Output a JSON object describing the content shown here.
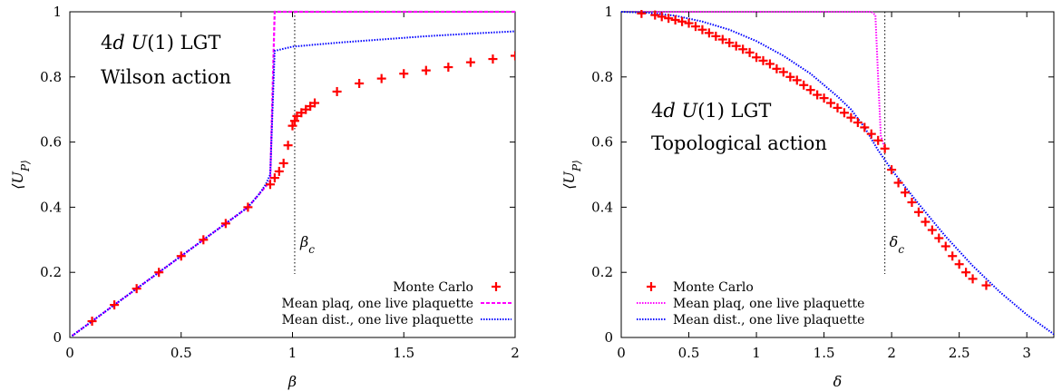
{
  "chart_data": [
    {
      "type": "scatter",
      "xlabel": "β",
      "ylabel": "⟨U_P⟩",
      "xlim": [
        0,
        2
      ],
      "ylim": [
        0,
        1
      ],
      "x_ticks": [
        "0",
        "0.5",
        "1",
        "1.5",
        "2"
      ],
      "y_ticks": [
        "0",
        "0.2",
        "0.4",
        "0.6",
        "0.8",
        "1"
      ],
      "annotation_line1": "4d U(1) LGT",
      "annotation_line2": "Wilson action",
      "critical_label": "β_c",
      "critical_x": 1.01,
      "legend_position": "bottom-right",
      "series": [
        {
          "name": "Monte Carlo",
          "color": "#ff0000",
          "marker": "plus",
          "x": [
            0.1,
            0.2,
            0.3,
            0.4,
            0.5,
            0.6,
            0.7,
            0.8,
            0.9,
            0.92,
            0.94,
            0.96,
            0.98,
            1.0,
            1.01,
            1.02,
            1.04,
            1.06,
            1.08,
            1.1,
            1.2,
            1.3,
            1.4,
            1.5,
            1.6,
            1.7,
            1.8,
            1.9,
            2.0
          ],
          "y": [
            0.05,
            0.1,
            0.15,
            0.2,
            0.25,
            0.3,
            0.35,
            0.4,
            0.47,
            0.49,
            0.51,
            0.535,
            0.59,
            0.65,
            0.665,
            0.68,
            0.69,
            0.7,
            0.71,
            0.72,
            0.755,
            0.78,
            0.795,
            0.81,
            0.82,
            0.83,
            0.845,
            0.855,
            0.865
          ]
        },
        {
          "name": "Mean plaq, one live plaquette",
          "color": "#ff00ff",
          "line": "dashed",
          "x": [
            0.01,
            0.1,
            0.2,
            0.3,
            0.4,
            0.5,
            0.6,
            0.7,
            0.8,
            0.85,
            0.9,
            0.91,
            0.92,
            0.93,
            2.0
          ],
          "y": [
            0.005,
            0.05,
            0.1,
            0.15,
            0.2,
            0.25,
            0.3,
            0.35,
            0.4,
            0.44,
            0.48,
            0.74,
            1.0,
            1.0,
            1.0
          ]
        },
        {
          "name": "Mean dist., one live plaquette",
          "color": "#0000ff",
          "line": "dotted",
          "x": [
            0.01,
            0.1,
            0.2,
            0.3,
            0.4,
            0.5,
            0.6,
            0.7,
            0.8,
            0.85,
            0.88,
            0.9,
            0.92,
            1.0,
            1.2,
            1.4,
            1.6,
            1.8,
            2.0
          ],
          "y": [
            0.005,
            0.05,
            0.1,
            0.15,
            0.2,
            0.25,
            0.3,
            0.35,
            0.4,
            0.44,
            0.47,
            0.5,
            0.88,
            0.893,
            0.905,
            0.915,
            0.925,
            0.933,
            0.94
          ]
        }
      ]
    },
    {
      "type": "scatter",
      "xlabel": "δ",
      "ylabel": "⟨U_P⟩",
      "xlim": [
        0,
        3.2
      ],
      "ylim": [
        0,
        1
      ],
      "x_ticks": [
        "0",
        "0.5",
        "1",
        "1.5",
        "2",
        "2.5",
        "3"
      ],
      "y_ticks": [
        "0",
        "0.2",
        "0.4",
        "0.6",
        "0.8",
        "1"
      ],
      "annotation_line1": "4d U(1) LGT",
      "annotation_line2": "Topological action",
      "critical_label": "δ_c",
      "critical_x": 1.95,
      "legend_position": "bottom-left",
      "series": [
        {
          "name": "Monte Carlo",
          "color": "#ff0000",
          "marker": "plus",
          "x": [
            0.15,
            0.25,
            0.3,
            0.35,
            0.4,
            0.45,
            0.5,
            0.55,
            0.6,
            0.65,
            0.7,
            0.75,
            0.8,
            0.85,
            0.9,
            0.95,
            1.0,
            1.05,
            1.1,
            1.15,
            1.2,
            1.25,
            1.3,
            1.35,
            1.4,
            1.45,
            1.5,
            1.55,
            1.6,
            1.65,
            1.7,
            1.75,
            1.8,
            1.85,
            1.9,
            1.95,
            2.0,
            2.05,
            2.1,
            2.15,
            2.2,
            2.25,
            2.3,
            2.35,
            2.4,
            2.45,
            2.5,
            2.55,
            2.6,
            2.7
          ],
          "y": [
            0.995,
            0.99,
            0.985,
            0.98,
            0.975,
            0.97,
            0.965,
            0.955,
            0.945,
            0.935,
            0.925,
            0.915,
            0.905,
            0.895,
            0.885,
            0.875,
            0.86,
            0.85,
            0.84,
            0.825,
            0.815,
            0.8,
            0.79,
            0.775,
            0.76,
            0.745,
            0.735,
            0.72,
            0.705,
            0.69,
            0.675,
            0.66,
            0.645,
            0.625,
            0.605,
            0.58,
            0.515,
            0.475,
            0.445,
            0.415,
            0.385,
            0.355,
            0.33,
            0.305,
            0.28,
            0.25,
            0.225,
            0.2,
            0.18,
            0.16
          ]
        },
        {
          "name": "Mean plaq, one live plaquette",
          "color": "#ff00ff",
          "line": "dotted",
          "x": [
            0.0,
            1.85,
            1.88,
            1.9,
            1.92,
            1.95
          ],
          "y": [
            1.0,
            1.0,
            0.99,
            0.8,
            0.62,
            0.58
          ]
        },
        {
          "name": "Mean dist., one live plaquette",
          "color": "#0000ff",
          "line": "dotted",
          "x": [
            0.0,
            0.2,
            0.4,
            0.6,
            0.8,
            1.0,
            1.2,
            1.4,
            1.6,
            1.7,
            1.8,
            1.9,
            2.0,
            2.2,
            2.4,
            2.6,
            2.8,
            3.0,
            3.2
          ],
          "y": [
            1.0,
            0.997,
            0.988,
            0.97,
            0.945,
            0.91,
            0.865,
            0.81,
            0.74,
            0.7,
            0.645,
            0.575,
            0.515,
            0.41,
            0.31,
            0.22,
            0.14,
            0.07,
            0.01
          ]
        }
      ]
    }
  ]
}
